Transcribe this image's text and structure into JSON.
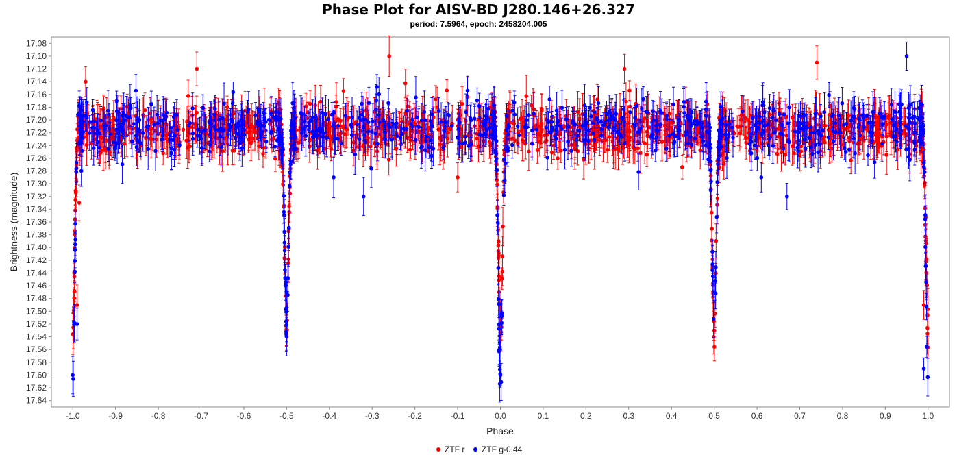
{
  "chart_data": {
    "type": "scatter",
    "title": "Phase Plot for AISV-BD J280.146+26.327",
    "subtitle": "period: 7.5964, epoch: 2458204.005",
    "xlabel": "Phase",
    "ylabel": "Brightness (magnitude)",
    "xlim": [
      -1.05,
      1.05
    ],
    "ylim": [
      17.07,
      17.65
    ],
    "y_inverted": true,
    "x_ticks": [
      "-1.0",
      "-0.9",
      "-0.8",
      "-0.7",
      "-0.6",
      "-0.5",
      "-0.4",
      "-0.3",
      "-0.2",
      "-0.1",
      "0.0",
      "0.1",
      "0.2",
      "0.3",
      "0.4",
      "0.5",
      "0.6",
      "0.7",
      "0.8",
      "0.9",
      "1.0"
    ],
    "y_ticks": [
      "17.08",
      "17.10",
      "17.12",
      "17.14",
      "17.16",
      "17.18",
      "17.20",
      "17.22",
      "17.24",
      "17.26",
      "17.28",
      "17.30",
      "17.32",
      "17.34",
      "17.36",
      "17.38",
      "17.40",
      "17.42",
      "17.44",
      "17.46",
      "17.48",
      "17.50",
      "17.52",
      "17.54",
      "17.56",
      "17.58",
      "17.60",
      "17.62",
      "17.64"
    ],
    "grid": false,
    "legend_position": "bottom-center",
    "series": [
      {
        "name": "ZTF r",
        "color": "#ff0000",
        "baseline_mag": 17.215,
        "scatter_mag": 0.018,
        "error_mag": 0.022,
        "primary_eclipse": {
          "phase": 0.0,
          "depth_mag": 17.53,
          "half_width": 0.012
        },
        "secondary_eclipse": {
          "phase": 0.5,
          "depth_mag": 17.53,
          "half_width": 0.012
        },
        "sample_points": [
          {
            "x": -0.99,
            "y": 17.49
          },
          {
            "x": -0.985,
            "y": 17.33
          },
          {
            "x": -0.97,
            "y": 17.14
          },
          {
            "x": -0.71,
            "y": 17.12
          },
          {
            "x": -0.5,
            "y": 17.53
          },
          {
            "x": -0.26,
            "y": 17.1
          },
          {
            "x": -0.1,
            "y": 17.29
          },
          {
            "x": 0.0,
            "y": 17.53
          },
          {
            "x": 0.29,
            "y": 17.12
          },
          {
            "x": 0.5,
            "y": 17.53
          },
          {
            "x": 0.74,
            "y": 17.11
          },
          {
            "x": 0.99,
            "y": 17.49
          }
        ]
      },
      {
        "name": "ZTF g-0.44",
        "color": "#0000ff",
        "baseline_mag": 17.21,
        "scatter_mag": 0.02,
        "error_mag": 0.022,
        "primary_eclipse": {
          "phase": 0.0,
          "depth_mag": 17.6,
          "half_width": 0.012
        },
        "secondary_eclipse": {
          "phase": 0.5,
          "depth_mag": 17.52,
          "half_width": 0.012
        },
        "sample_points": [
          {
            "x": -1.0,
            "y": 17.6
          },
          {
            "x": -0.99,
            "y": 17.52
          },
          {
            "x": -0.98,
            "y": 17.28
          },
          {
            "x": -0.39,
            "y": 17.29
          },
          {
            "x": -0.32,
            "y": 17.32
          },
          {
            "x": -0.5,
            "y": 17.47
          },
          {
            "x": 0.0,
            "y": 17.6
          },
          {
            "x": 0.5,
            "y": 17.47
          },
          {
            "x": 0.61,
            "y": 17.29
          },
          {
            "x": 0.67,
            "y": 17.32
          },
          {
            "x": 0.95,
            "y": 17.1
          },
          {
            "x": 0.99,
            "y": 17.59
          }
        ]
      }
    ]
  }
}
